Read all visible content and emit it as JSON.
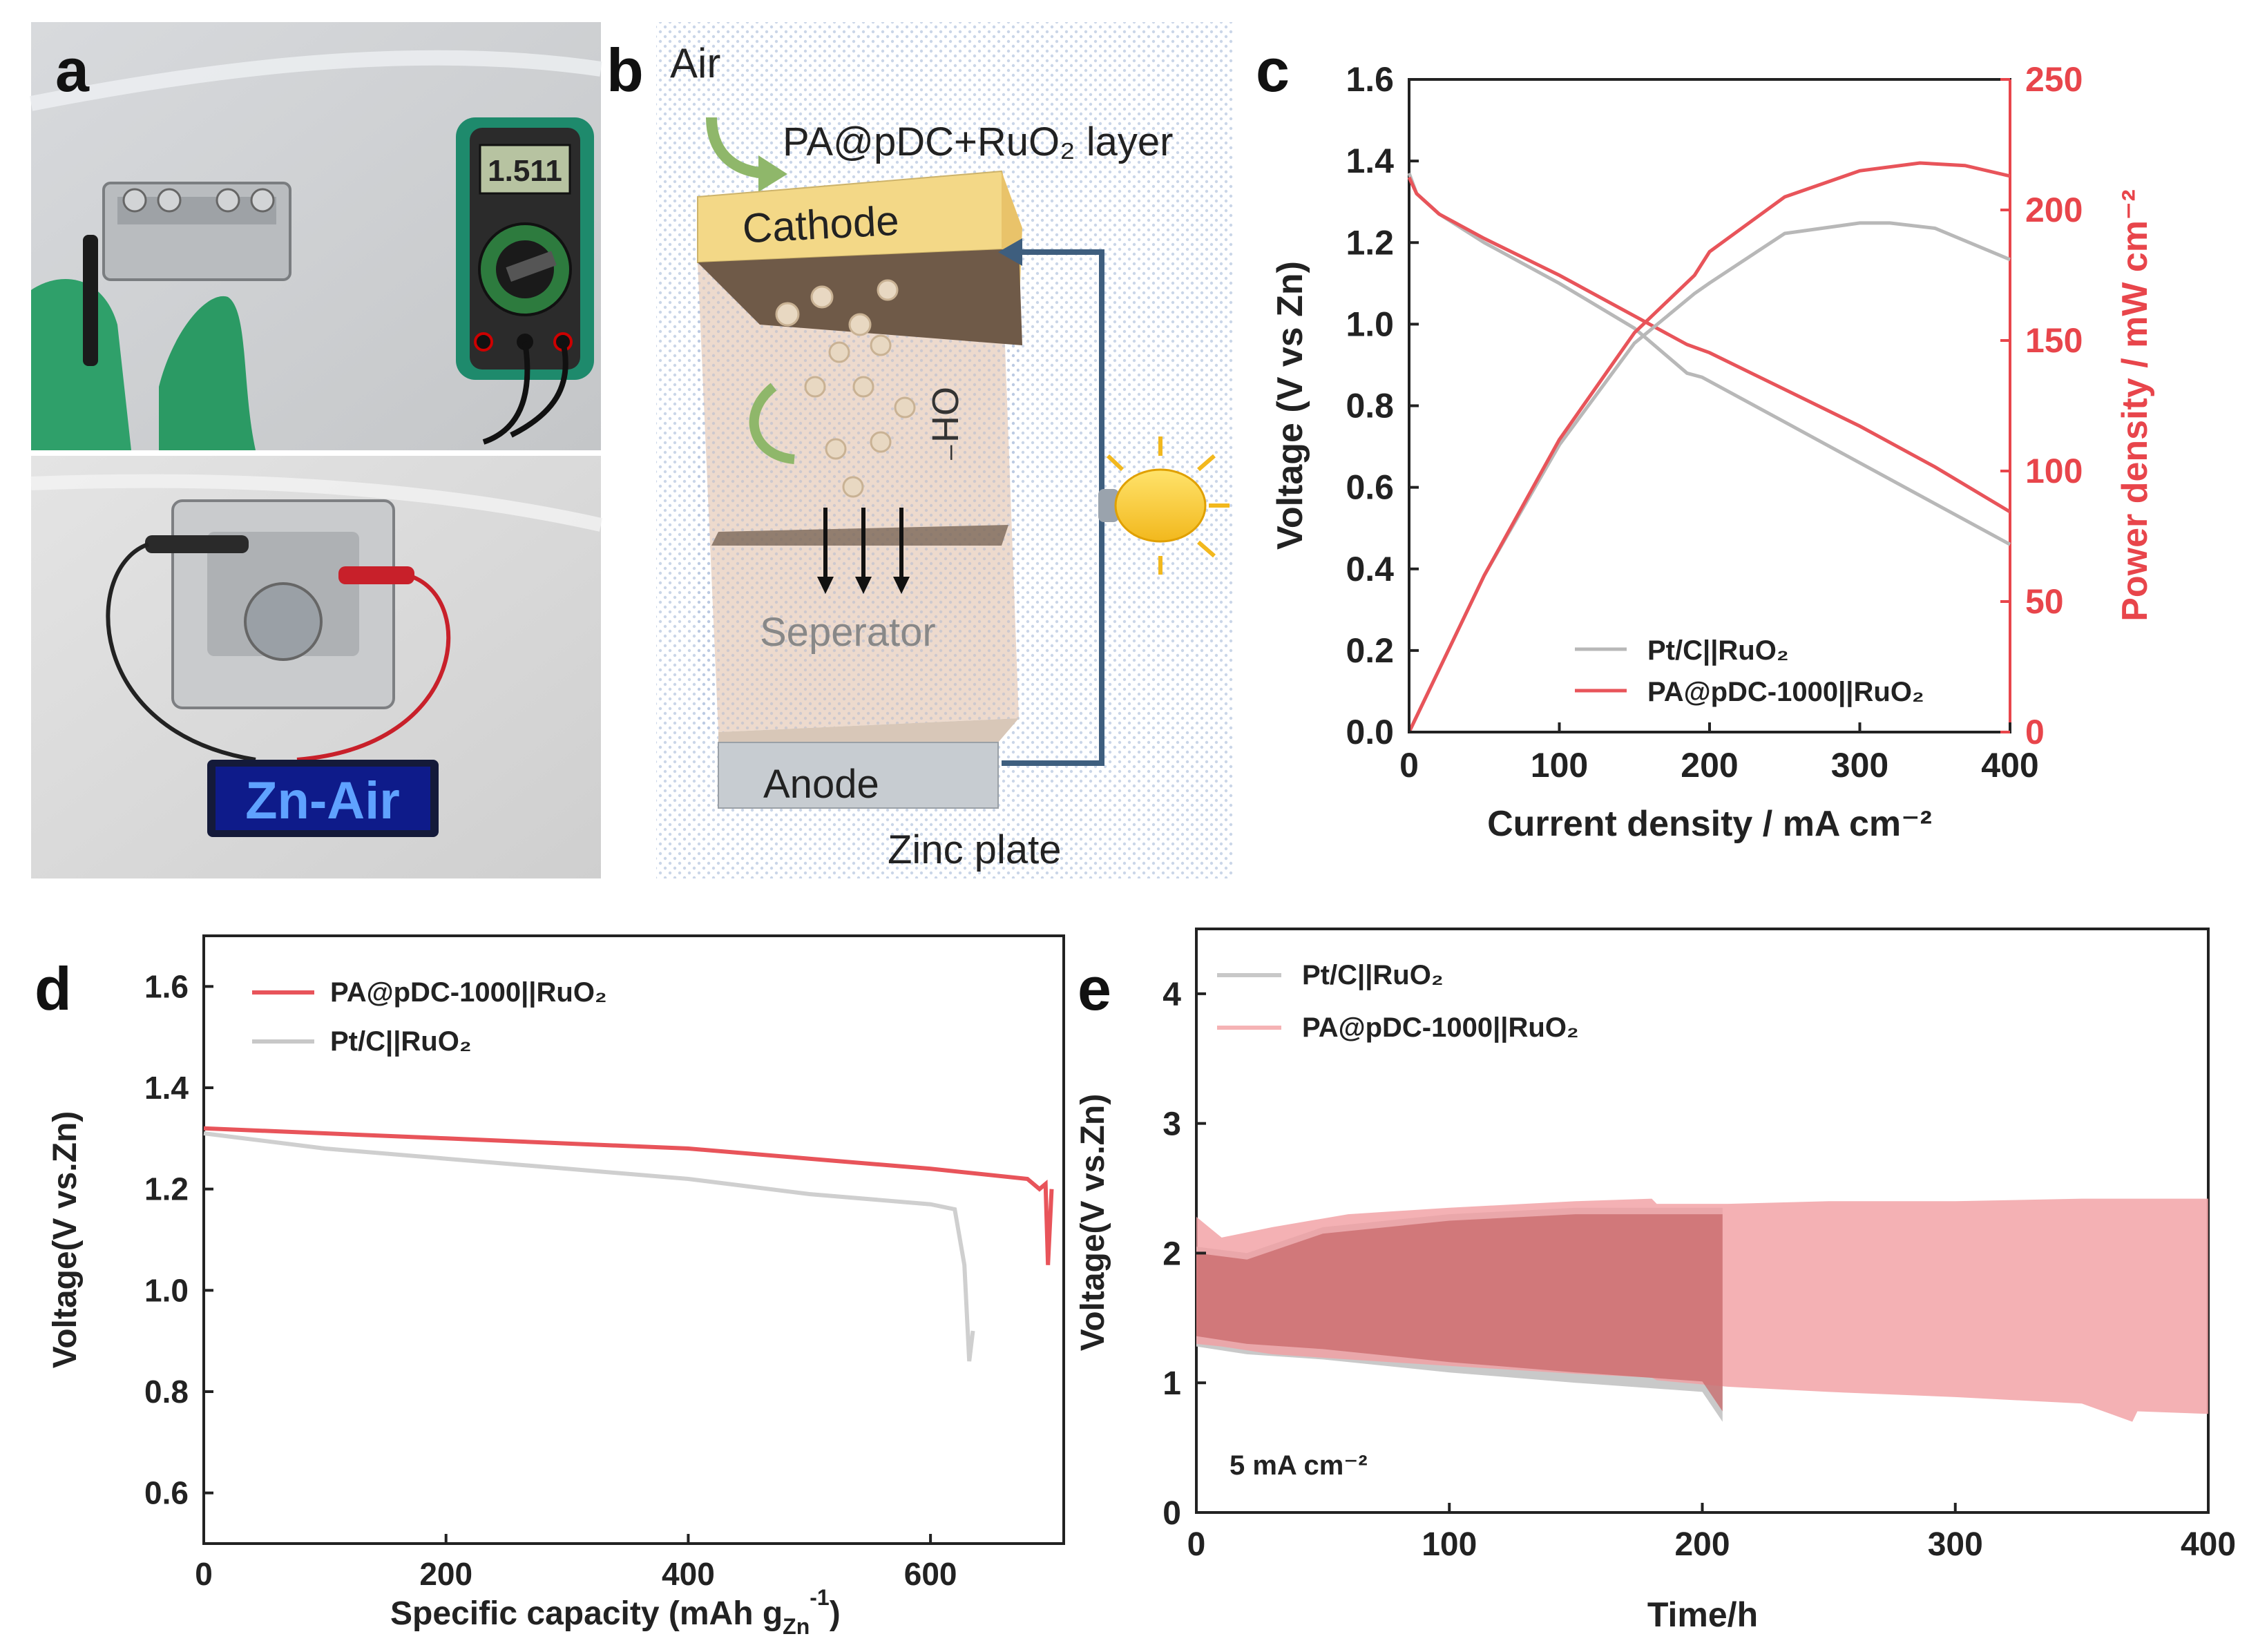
{
  "panel_labels": {
    "a": "a",
    "b": "b",
    "c": "c",
    "d": "d",
    "e": "e"
  },
  "colors": {
    "red": "#e8545a",
    "grey": "#b8b8b8",
    "red_fill": "#f2a0a3",
    "dark_fill": "#c8686a",
    "axis_red": "#e8454b"
  },
  "photo": {
    "multimeter_reading": "1.511",
    "led_text": "Zn-Air"
  },
  "schematic": {
    "air": "Air",
    "layer": "PA@pDC+RuO₂ layer",
    "cathode": "Cathode",
    "oh": "OH⁻",
    "separator": "Seperator",
    "anode": "Anode",
    "zinc_plate": "Zinc plate"
  },
  "chart_data": [
    {
      "id": "c",
      "type": "line",
      "xlabel": "Current density / mA cm⁻²",
      "ylabel": "Voltage (V vs Zn)",
      "y2label": "Power density / mW cm⁻²",
      "xlim": [
        0,
        400
      ],
      "ylim": [
        0,
        1.6
      ],
      "y2lim": [
        0,
        250
      ],
      "xticks": [
        "0",
        "100",
        "200",
        "300",
        "400"
      ],
      "yticks": [
        "0.0",
        "0.2",
        "0.4",
        "0.6",
        "0.8",
        "1.0",
        "1.2",
        "1.4",
        "1.6"
      ],
      "y2ticks": [
        "0",
        "50",
        "100",
        "150",
        "200",
        "250"
      ],
      "legend": [
        "Pt/C||RuO₂",
        "PA@pDC-1000||RuO₂"
      ],
      "series": [
        {
          "name": "Pt/C||RuO₂ voltage",
          "axis": "left",
          "color": "grey",
          "x": [
            0,
            5,
            20,
            50,
            100,
            150,
            185,
            195,
            250,
            300,
            350,
            400
          ],
          "y": [
            1.37,
            1.32,
            1.27,
            1.2,
            1.1,
            0.99,
            0.88,
            0.87,
            0.76,
            0.66,
            0.56,
            0.46
          ]
        },
        {
          "name": "PA@pDC-1000||RuO₂ voltage",
          "axis": "left",
          "color": "red",
          "x": [
            0,
            5,
            20,
            50,
            100,
            150,
            185,
            200,
            250,
            300,
            350,
            400
          ],
          "y": [
            1.36,
            1.32,
            1.27,
            1.21,
            1.12,
            1.02,
            0.95,
            0.93,
            0.84,
            0.75,
            0.65,
            0.54
          ]
        },
        {
          "name": "Pt/C||RuO₂ power",
          "axis": "right",
          "color": "grey",
          "x": [
            0,
            50,
            100,
            150,
            190,
            200,
            250,
            300,
            320,
            350,
            400
          ],
          "y": [
            0,
            60,
            110,
            149,
            168,
            172,
            191,
            195,
            195,
            193,
            181
          ]
        },
        {
          "name": "PA@pDC-1000||RuO₂ power",
          "axis": "right",
          "color": "red",
          "x": [
            0,
            50,
            100,
            150,
            190,
            200,
            250,
            300,
            340,
            370,
            400
          ],
          "y": [
            0,
            60,
            112,
            153,
            175,
            184,
            205,
            215,
            218,
            217,
            213
          ]
        }
      ]
    },
    {
      "id": "d",
      "type": "line",
      "xlabel": "Specific capacity (mAh g",
      "xlabel_sub": "Zn",
      "xlabel_sup": "-1",
      "xlabel_end": ")",
      "ylabel": "Voltage(V vs.Zn)",
      "xlim": [
        0,
        710
      ],
      "ylim": [
        0.5,
        1.7
      ],
      "xticks": [
        "0",
        "200",
        "400",
        "600"
      ],
      "yticks": [
        "0.6",
        "0.8",
        "1.0",
        "1.2",
        "1.4",
        "1.6"
      ],
      "legend": [
        "PA@pDC-1000||RuO₂",
        "Pt/C||RuO₂"
      ],
      "series": [
        {
          "name": "PA@pDC-1000||RuO₂",
          "color": "red",
          "x": [
            0,
            100,
            200,
            300,
            400,
            500,
            600,
            680,
            690,
            695,
            697,
            700
          ],
          "y": [
            1.32,
            1.31,
            1.3,
            1.29,
            1.28,
            1.26,
            1.24,
            1.22,
            1.2,
            1.21,
            1.05,
            1.2
          ]
        },
        {
          "name": "Pt/C||RuO₂",
          "color": "grey",
          "x": [
            0,
            100,
            200,
            300,
            400,
            500,
            600,
            620,
            628,
            632,
            635
          ],
          "y": [
            1.31,
            1.28,
            1.26,
            1.24,
            1.22,
            1.19,
            1.17,
            1.16,
            1.05,
            0.86,
            0.92
          ]
        }
      ]
    },
    {
      "id": "e",
      "type": "area",
      "xlabel": "Time/h",
      "ylabel": "Voltage(V vs.Zn)",
      "xlim": [
        0,
        400
      ],
      "ylim": [
        0,
        4.5
      ],
      "xticks": [
        "0",
        "100",
        "200",
        "300",
        "400"
      ],
      "yticks": [
        "0",
        "1",
        "2",
        "3",
        "4"
      ],
      "legend": [
        "Pt/C||RuO₂",
        "PA@pDC-1000||RuO₂"
      ],
      "annotation": "5 mA cm⁻²",
      "series": [
        {
          "name": "Pt/C||RuO₂",
          "color": "grey",
          "x": [
            0,
            20,
            50,
            100,
            150,
            200,
            208
          ],
          "upper": [
            2.05,
            2.0,
            2.2,
            2.3,
            2.35,
            2.35,
            2.35
          ],
          "lower": [
            1.28,
            1.22,
            1.18,
            1.08,
            1.0,
            0.93,
            0.7
          ]
        },
        {
          "name": "PA@pDC-1000||RuO₂",
          "color": "red",
          "x": [
            0,
            10,
            30,
            60,
            100,
            150,
            180,
            182,
            210,
            250,
            300,
            350,
            370,
            372,
            400
          ],
          "upper": [
            2.28,
            2.12,
            2.2,
            2.3,
            2.35,
            2.4,
            2.42,
            2.38,
            2.38,
            2.4,
            2.4,
            2.42,
            2.42,
            2.42,
            2.42
          ],
          "lower": [
            1.3,
            1.28,
            1.22,
            1.18,
            1.13,
            1.07,
            1.04,
            1.02,
            0.97,
            0.93,
            0.89,
            0.84,
            0.7,
            0.78,
            0.76
          ]
        }
      ]
    }
  ]
}
